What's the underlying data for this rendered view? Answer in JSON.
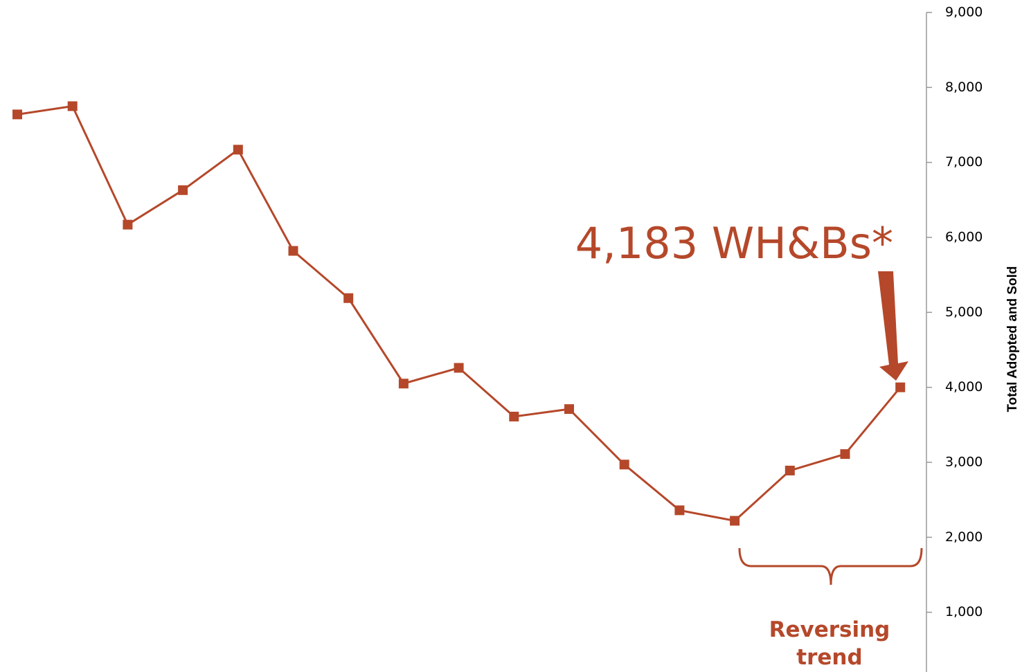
{
  "chart_data": {
    "type": "line",
    "categories": [
      null,
      null,
      null,
      null,
      null,
      null,
      null,
      null,
      null,
      null,
      null,
      null,
      null,
      null,
      null,
      null,
      null
    ],
    "series": [
      {
        "name": null,
        "color": "#b5482a",
        "values": [
          7640,
          7750,
          6170,
          6630,
          7170,
          5820,
          5190,
          4050,
          4260,
          3610,
          3710,
          2970,
          2360,
          2220,
          2890,
          3110,
          4000
        ]
      }
    ],
    "ylim": [
      0,
      9000
    ],
    "yticks": [
      {
        "value": 1000,
        "label": "1,000"
      },
      {
        "value": 2000,
        "label": "2,000"
      },
      {
        "value": 3000,
        "label": "3,000"
      },
      {
        "value": 4000,
        "label": "4,000"
      },
      {
        "value": 5000,
        "label": "5,000"
      },
      {
        "value": 6000,
        "label": "6,000"
      },
      {
        "value": 7000,
        "label": "7,000"
      },
      {
        "value": 8000,
        "label": "8,000"
      },
      {
        "value": 9000,
        "label": "9,000"
      }
    ],
    "y_axis_label": "Total Adopted and Sold",
    "y_axis_side": "right",
    "annotations": [
      "4,183 WH&Bs*",
      "Reversing trend"
    ]
  }
}
